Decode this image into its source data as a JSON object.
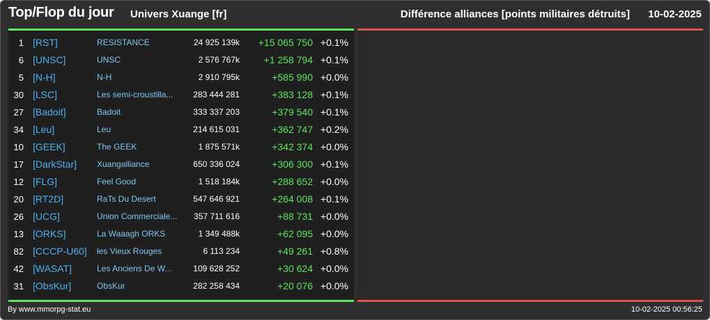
{
  "header": {
    "title": "Top/Flop du jour",
    "universe": "Univers Xuange [fr]",
    "metric": "Différence alliances [points militaires détruits]",
    "date": "10-02-2025"
  },
  "colors": {
    "background": "#2f2f2f",
    "top_accent": "#5ee65e",
    "flop_accent": "#e05050",
    "tag": "#4fb0f0",
    "positive": "#5ee65e"
  },
  "rows": [
    {
      "rank": "1",
      "tag": "[RST]",
      "name": "RESISTANCE",
      "points": "24 925 139k",
      "diff": "+15 065 750",
      "pct": "+0.1%"
    },
    {
      "rank": "6",
      "tag": "[UNSC]",
      "name": "UNSC",
      "points": "2 576 767k",
      "diff": "+1 258 794",
      "pct": "+0.1%"
    },
    {
      "rank": "5",
      "tag": "[N-H]",
      "name": "N-H",
      "points": "2 910 795k",
      "diff": "+585 990",
      "pct": "+0.0%"
    },
    {
      "rank": "30",
      "tag": "[LSC]",
      "name": "Les semi-croustilla...",
      "points": "283 444 281",
      "diff": "+383 128",
      "pct": "+0.1%"
    },
    {
      "rank": "27",
      "tag": "[Badoit]",
      "name": "Badoit",
      "points": "333 337 203",
      "diff": "+379 540",
      "pct": "+0.1%"
    },
    {
      "rank": "34",
      "tag": "[Leu]",
      "name": "Leu",
      "points": "214 615 031",
      "diff": "+362 747",
      "pct": "+0.2%"
    },
    {
      "rank": "10",
      "tag": "[GEEK]",
      "name": "The GEEK",
      "points": "1 875 571k",
      "diff": "+342 374",
      "pct": "+0.0%"
    },
    {
      "rank": "17",
      "tag": "[DarkStar]",
      "name": "Xuangalliance",
      "points": "650 336 024",
      "diff": "+306 300",
      "pct": "+0.1%"
    },
    {
      "rank": "12",
      "tag": "[FLG]",
      "name": "Feel Good",
      "points": "1 518 184k",
      "diff": "+288 652",
      "pct": "+0.0%"
    },
    {
      "rank": "20",
      "tag": "[RT2D]",
      "name": "RaTs Du Desert",
      "points": "547 646 921",
      "diff": "+264 008",
      "pct": "+0.1%"
    },
    {
      "rank": "26",
      "tag": "[UCG]",
      "name": "Union Commerciale...",
      "points": "357 711 616",
      "diff": "+88 731",
      "pct": "+0.0%"
    },
    {
      "rank": "13",
      "tag": "[ORKS]",
      "name": "La Waaagh ORKS",
      "points": "1 349 488k",
      "diff": "+62 095",
      "pct": "+0.0%"
    },
    {
      "rank": "82",
      "tag": "[CCCP-U60]",
      "name": "les Vieux Rouges",
      "points": "6 113 234",
      "diff": "+49 261",
      "pct": "+0.8%"
    },
    {
      "rank": "42",
      "tag": "[WASAT]",
      "name": "Les Anciens De W...",
      "points": "109 628 252",
      "diff": "+30 624",
      "pct": "+0.0%"
    },
    {
      "rank": "31",
      "tag": "[ObsKur]",
      "name": "ObsKur",
      "points": "282 258 434",
      "diff": "+20 076",
      "pct": "+0.0%"
    }
  ],
  "footer": {
    "credit": "By www.mmorpg-stat.eu",
    "timestamp": "10-02-2025 00:56:25"
  }
}
